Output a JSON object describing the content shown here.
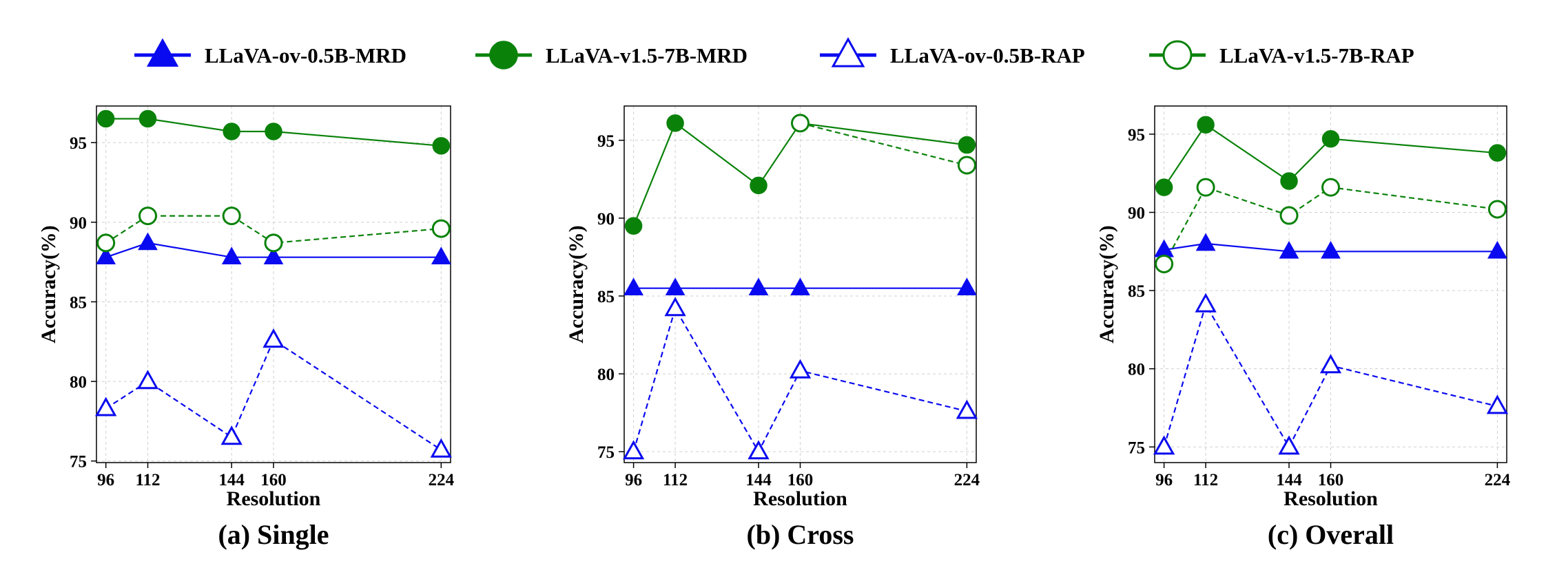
{
  "colors": {
    "blue": "#0a0af0",
    "green": "#0a820a",
    "grid": "#cfcfcf",
    "axis": "#000000"
  },
  "legend": [
    {
      "label": "LLaVA-ov-0.5B-MRD",
      "color": "#0a0af0",
      "marker": "triangle-filled",
      "line": "solid"
    },
    {
      "label": "LLaVA-v1.5-7B-MRD",
      "color": "#0a820a",
      "marker": "circle-filled",
      "line": "solid"
    },
    {
      "label": "LLaVA-ov-0.5B-RAP",
      "color": "#0a0af0",
      "marker": "triangle-open",
      "line": "dashed"
    },
    {
      "label": "LLaVA-v1.5-7B-RAP",
      "color": "#0a820a",
      "marker": "circle-open",
      "line": "dashed"
    }
  ],
  "chart_data": [
    {
      "type": "line",
      "caption": "(a) Single",
      "xlabel": "Resolution",
      "ylabel": "Accuracy(%)",
      "x": [
        96,
        112,
        144,
        160,
        224
      ],
      "xlim": [
        92.4,
        227.6
      ],
      "ylim": [
        74.9,
        97.3
      ],
      "yticks": [
        75,
        80,
        85,
        90,
        95
      ],
      "grid": true,
      "series": [
        {
          "name": "LLaVA-ov-0.5B-MRD",
          "values": [
            87.8,
            88.7,
            87.8,
            87.8,
            87.8
          ]
        },
        {
          "name": "LLaVA-v1.5-7B-MRD",
          "values": [
            96.5,
            96.5,
            95.7,
            95.7,
            94.8
          ]
        },
        {
          "name": "LLaVA-ov-0.5B-RAP",
          "values": [
            78.3,
            80.0,
            76.5,
            82.6,
            75.7
          ]
        },
        {
          "name": "LLaVA-v1.5-7B-RAP",
          "values": [
            88.7,
            90.4,
            90.4,
            88.7,
            89.6
          ]
        }
      ]
    },
    {
      "type": "line",
      "caption": "(b) Cross",
      "xlabel": "Resolution",
      "ylabel": "Accuracy(%)",
      "x": [
        96,
        112,
        144,
        160,
        224
      ],
      "xlim": [
        92.4,
        227.6
      ],
      "ylim": [
        74.3,
        97.2
      ],
      "yticks": [
        75,
        80,
        85,
        90,
        95
      ],
      "grid": true,
      "series": [
        {
          "name": "LLaVA-ov-0.5B-MRD",
          "values": [
            85.5,
            85.5,
            85.5,
            85.5,
            85.5
          ]
        },
        {
          "name": "LLaVA-v1.5-7B-MRD",
          "values": [
            89.5,
            96.1,
            92.1,
            96.1,
            94.7
          ]
        },
        {
          "name": "LLaVA-ov-0.5B-RAP",
          "values": [
            75.0,
            84.2,
            75.0,
            80.2,
            77.6
          ]
        },
        {
          "name": "LLaVA-v1.5-7B-RAP",
          "values": [
            null,
            null,
            null,
            96.1,
            93.4
          ]
        }
      ]
    },
    {
      "type": "line",
      "caption": "(c) Overall",
      "xlabel": "Resolution",
      "ylabel": "Accuracy(%)",
      "x": [
        96,
        112,
        144,
        160,
        224
      ],
      "xlim": [
        92.4,
        227.6
      ],
      "ylim": [
        74.0,
        96.8
      ],
      "yticks": [
        75,
        80,
        85,
        90,
        95
      ],
      "grid": true,
      "series": [
        {
          "name": "LLaVA-ov-0.5B-MRD",
          "values": [
            87.6,
            88.0,
            87.5,
            87.5,
            87.5
          ]
        },
        {
          "name": "LLaVA-v1.5-7B-MRD",
          "values": [
            91.6,
            95.6,
            92.0,
            94.7,
            93.8
          ]
        },
        {
          "name": "LLaVA-ov-0.5B-RAP",
          "values": [
            75.0,
            84.1,
            75.0,
            80.2,
            77.6
          ]
        },
        {
          "name": "LLaVA-v1.5-7B-RAP",
          "values": [
            86.7,
            91.6,
            89.8,
            91.6,
            90.2
          ]
        }
      ]
    }
  ]
}
